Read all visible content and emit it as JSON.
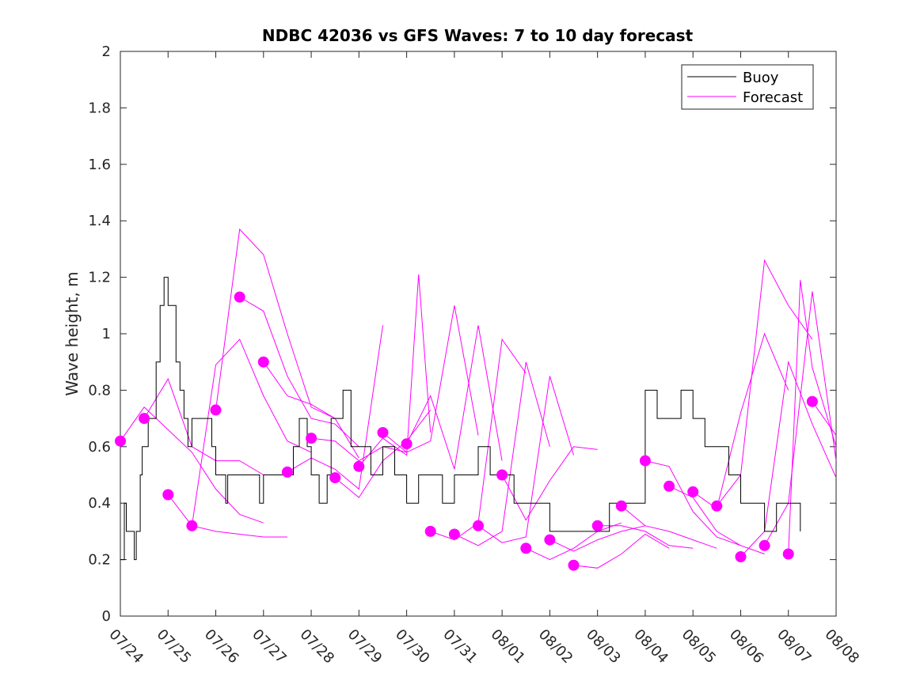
{
  "chart_data": {
    "type": "line",
    "title": "NDBC 42036 vs GFS Waves: 7 to 10 day forecast",
    "ylabel": "Wave height, m",
    "xlabel": "",
    "ylim": [
      0,
      2
    ],
    "yticks": [
      "0",
      "0.2",
      "0.4",
      "0.6",
      "0.8",
      "1",
      "1.2",
      "1.4",
      "1.6",
      "1.8",
      "2"
    ],
    "xlim": [
      "07/24",
      "08/08"
    ],
    "xticks": [
      "07/24",
      "07/25",
      "07/26",
      "07/27",
      "07/28",
      "07/29",
      "07/30",
      "07/31",
      "08/01",
      "08/02",
      "08/03",
      "08/04",
      "08/05",
      "08/06",
      "08/07",
      "08/08"
    ],
    "grid": false,
    "legend_position": "top-right",
    "legend": [
      "Buoy",
      "Forecast"
    ],
    "colors": {
      "buoy": "#000000",
      "forecast": "#ff00ff"
    },
    "buoy": {
      "name": "Buoy",
      "x": [
        "07/24 00:00",
        "07/24 02:00",
        "07/24 03:00",
        "07/24 05:00",
        "07/24 07:00",
        "07/24 08:00",
        "07/24 10:00",
        "07/24 11:00",
        "07/24 13:00",
        "07/24 14:00",
        "07/24 16:00",
        "07/24 18:00",
        "07/24 20:00",
        "07/24 22:00",
        "07/25 00:00",
        "07/25 02:00",
        "07/25 04:00",
        "07/25 06:00",
        "07/25 08:00",
        "07/25 10:00",
        "07/25 12:00",
        "07/25 13:00",
        "07/25 14:00",
        "07/25 15:00",
        "07/25 16:00",
        "07/25 17:00",
        "07/25 18:00",
        "07/25 20:00",
        "07/25 22:00",
        "07/26 00:00",
        "07/26 02:00",
        "07/26 04:00",
        "07/26 05:00",
        "07/26 06:00",
        "07/26 12:00",
        "07/26 14:00",
        "07/26 18:00",
        "07/26 22:00",
        "07/27 00:00",
        "07/27 06:00",
        "07/27 12:00",
        "07/27 15:00",
        "07/27 18:00",
        "07/27 22:00",
        "07/28 00:00",
        "07/28 04:00",
        "07/28 08:00",
        "07/28 10:00",
        "07/28 12:00",
        "07/28 16:00",
        "07/28 20:00",
        "07/29 00:00",
        "07/29 06:00",
        "07/29 12:00",
        "07/29 18:00",
        "07/30 00:00",
        "07/30 06:00",
        "07/30 12:00",
        "07/30 18:00",
        "07/31 00:00",
        "07/31 06:00",
        "07/31 12:00",
        "07/31 18:00",
        "08/01 00:00",
        "08/01 06:00",
        "08/01 12:00",
        "08/01 18:00",
        "08/02 00:00",
        "08/02 06:00",
        "08/02 12:00",
        "08/02 18:00",
        "08/03 00:00",
        "08/03 06:00",
        "08/03 12:00",
        "08/03 18:00",
        "08/04 00:00",
        "08/04 06:00",
        "08/04 12:00",
        "08/04 18:00",
        "08/05 00:00",
        "08/05 06:00",
        "08/05 12:00",
        "08/05 18:00",
        "08/06 00:00",
        "08/06 06:00",
        "08/06 12:00",
        "08/06 18:00",
        "08/07 00:00",
        "08/07 06:00"
      ],
      "values": [
        0.2,
        0.4,
        0.3,
        0.3,
        0.2,
        0.3,
        0.5,
        0.6,
        0.6,
        0.7,
        0.7,
        0.9,
        1.1,
        1.2,
        1.1,
        1.1,
        0.9,
        0.8,
        0.7,
        0.6,
        0.7,
        0.7,
        0.7,
        0.7,
        0.7,
        0.7,
        0.7,
        0.7,
        0.6,
        0.5,
        0.5,
        0.5,
        0.4,
        0.5,
        0.5,
        0.5,
        0.5,
        0.4,
        0.5,
        0.5,
        0.5,
        0.6,
        0.7,
        0.6,
        0.5,
        0.4,
        0.5,
        0.7,
        0.7,
        0.8,
        0.6,
        0.6,
        0.5,
        0.6,
        0.5,
        0.4,
        0.5,
        0.5,
        0.4,
        0.5,
        0.5,
        0.6,
        0.5,
        0.5,
        0.4,
        0.4,
        0.4,
        0.3,
        0.3,
        0.3,
        0.3,
        0.3,
        0.4,
        0.4,
        0.4,
        0.8,
        0.7,
        0.7,
        0.8,
        0.7,
        0.6,
        0.6,
        0.5,
        0.4,
        0.4,
        0.3,
        0.4,
        0.4,
        0.3
      ]
    },
    "forecast_markers": {
      "x": [
        "07/24 00:00",
        "07/24 12:00",
        "07/25 00:00",
        "07/25 12:00",
        "07/26 00:00",
        "07/26 12:00",
        "07/27 00:00",
        "07/27 12:00",
        "07/28 00:00",
        "07/28 12:00",
        "07/29 00:00",
        "07/29 12:00",
        "07/30 00:00",
        "07/30 12:00",
        "07/31 00:00",
        "07/31 12:00",
        "08/01 00:00",
        "08/01 12:00",
        "08/02 00:00",
        "08/02 12:00",
        "08/03 00:00",
        "08/03 12:00",
        "08/04 00:00",
        "08/04 12:00",
        "08/05 00:00",
        "08/05 12:00",
        "08/06 00:00",
        "08/06 12:00",
        "08/07 00:00",
        "08/07 12:00"
      ],
      "values": [
        0.62,
        0.7,
        0.43,
        0.32,
        0.73,
        1.13,
        0.9,
        0.51,
        0.63,
        0.49,
        0.53,
        0.65,
        0.61,
        0.3,
        0.29,
        0.32,
        0.5,
        0.24,
        0.27,
        0.18,
        0.32,
        0.39,
        0.55,
        0.46,
        0.44,
        0.39,
        0.21,
        0.25,
        0.22,
        0.76
      ]
    },
    "forecast_runs": [
      {
        "x": [
          "07/24 00:00",
          "07/24 12:00",
          "07/25 00:00",
          "07/25 12:00",
          "07/26 00:00",
          "07/26 12:00",
          "07/27 00:00"
        ],
        "values": [
          0.62,
          0.74,
          0.66,
          0.58,
          0.45,
          0.36,
          0.33
        ]
      },
      {
        "x": [
          "07/24 12:00",
          "07/25 00:00",
          "07/25 12:00",
          "07/26 00:00",
          "07/26 12:00",
          "07/27 00:00"
        ],
        "values": [
          0.7,
          0.84,
          0.6,
          0.55,
          0.55,
          0.5
        ]
      },
      {
        "x": [
          "07/25 00:00",
          "07/25 12:00",
          "07/26 00:00",
          "07/26 12:00",
          "07/27 00:00",
          "07/27 12:00"
        ],
        "values": [
          0.43,
          0.32,
          0.3,
          0.29,
          0.28,
          0.28
        ]
      },
      {
        "x": [
          "07/25 12:00",
          "07/26 00:00",
          "07/26 12:00",
          "07/27 00:00",
          "07/27 12:00",
          "07/28 00:00"
        ],
        "values": [
          0.32,
          0.89,
          0.98,
          0.78,
          0.62,
          0.58
        ]
      },
      {
        "x": [
          "07/26 00:00",
          "07/26 12:00",
          "07/27 00:00",
          "07/27 12:00",
          "07/28 00:00",
          "07/28 12:00"
        ],
        "values": [
          0.73,
          1.37,
          1.28,
          1.0,
          0.74,
          0.7
        ]
      },
      {
        "x": [
          "07/26 12:00",
          "07/27 00:00",
          "07/27 12:00",
          "07/28 00:00",
          "07/28 12:00",
          "07/29 00:00"
        ],
        "values": [
          1.13,
          1.08,
          0.85,
          0.7,
          0.68,
          0.6
        ]
      },
      {
        "x": [
          "07/27 00:00",
          "07/27 12:00",
          "07/28 00:00",
          "07/28 12:00",
          "07/29 00:00"
        ],
        "values": [
          0.9,
          0.78,
          0.75,
          0.7,
          0.56
        ]
      },
      {
        "x": [
          "07/27 12:00",
          "07/28 00:00",
          "07/28 12:00",
          "07/29 00:00",
          "07/29 12:00"
        ],
        "values": [
          0.51,
          0.56,
          0.52,
          0.45,
          1.03
        ]
      },
      {
        "x": [
          "07/28 00:00",
          "07/28 12:00",
          "07/29 00:00",
          "07/29 12:00",
          "07/30 00:00"
        ],
        "values": [
          0.63,
          0.62,
          0.55,
          0.6,
          0.58
        ]
      },
      {
        "x": [
          "07/28 12:00",
          "07/29 00:00",
          "07/29 12:00",
          "07/30 00:00",
          "07/30 12:00"
        ],
        "values": [
          0.49,
          0.42,
          0.55,
          0.62,
          0.73
        ]
      },
      {
        "x": [
          "07/29 00:00",
          "07/29 12:00",
          "07/30 00:00",
          "07/30 06:00",
          "07/30 12:00"
        ],
        "values": [
          0.53,
          0.63,
          0.57,
          1.21,
          0.65
        ]
      },
      {
        "x": [
          "07/29 12:00",
          "07/30 00:00",
          "07/30 12:00",
          "07/31 00:00",
          "07/31 12:00"
        ],
        "values": [
          0.65,
          0.58,
          0.62,
          1.1,
          0.64
        ]
      },
      {
        "x": [
          "07/30 00:00",
          "07/30 12:00",
          "07/31 00:00",
          "07/31 12:00",
          "08/01 00:00"
        ],
        "values": [
          0.61,
          0.78,
          0.52,
          1.03,
          0.55
        ]
      },
      {
        "x": [
          "07/30 12:00",
          "07/31 00:00",
          "07/31 12:00",
          "08/01 00:00",
          "08/01 12:00"
        ],
        "values": [
          0.3,
          0.27,
          0.33,
          0.98,
          0.86
        ]
      },
      {
        "x": [
          "07/31 00:00",
          "07/31 12:00",
          "08/01 00:00",
          "08/01 12:00",
          "08/02 00:00"
        ],
        "values": [
          0.29,
          0.25,
          0.3,
          0.9,
          0.6
        ]
      },
      {
        "x": [
          "07/31 12:00",
          "08/01 00:00",
          "08/01 12:00",
          "08/02 00:00",
          "08/02 12:00"
        ],
        "values": [
          0.32,
          0.26,
          0.28,
          0.85,
          0.57
        ]
      },
      {
        "x": [
          "08/01 00:00",
          "08/01 12:00",
          "08/02 00:00",
          "08/02 12:00",
          "08/03 00:00"
        ],
        "values": [
          0.5,
          0.34,
          0.48,
          0.6,
          0.59
        ]
      },
      {
        "x": [
          "08/01 12:00",
          "08/02 00:00",
          "08/02 12:00",
          "08/03 00:00",
          "08/03 12:00"
        ],
        "values": [
          0.24,
          0.2,
          0.24,
          0.3,
          0.33
        ]
      },
      {
        "x": [
          "08/02 00:00",
          "08/02 12:00",
          "08/03 00:00",
          "08/03 12:00",
          "08/04 00:00"
        ],
        "values": [
          0.27,
          0.23,
          0.27,
          0.3,
          0.32
        ]
      },
      {
        "x": [
          "08/02 12:00",
          "08/03 00:00",
          "08/03 12:00",
          "08/04 00:00",
          "08/04 12:00"
        ],
        "values": [
          0.18,
          0.17,
          0.22,
          0.29,
          0.24
        ]
      },
      {
        "x": [
          "08/03 00:00",
          "08/03 12:00",
          "08/04 00:00",
          "08/04 12:00",
          "08/05 00:00"
        ],
        "values": [
          0.32,
          0.32,
          0.3,
          0.25,
          0.24
        ]
      },
      {
        "x": [
          "08/03 12:00",
          "08/04 00:00",
          "08/04 12:00",
          "08/05 00:00",
          "08/05 12:00"
        ],
        "values": [
          0.39,
          0.32,
          0.3,
          0.27,
          0.24
        ]
      },
      {
        "x": [
          "08/04 00:00",
          "08/04 12:00",
          "08/05 00:00",
          "08/05 12:00",
          "08/06 00:00"
        ],
        "values": [
          0.55,
          0.53,
          0.37,
          0.28,
          0.25
        ]
      },
      {
        "x": [
          "08/04 12:00",
          "08/05 00:00",
          "08/05 12:00",
          "08/06 00:00",
          "08/06 12:00"
        ],
        "values": [
          0.46,
          0.42,
          0.3,
          0.25,
          0.22
        ]
      },
      {
        "x": [
          "08/05 00:00",
          "08/05 12:00",
          "08/06 00:00",
          "08/06 12:00",
          "08/07 00:00"
        ],
        "values": [
          0.44,
          0.38,
          0.72,
          1.0,
          0.8
        ]
      },
      {
        "x": [
          "08/05 12:00",
          "08/06 00:00",
          "08/06 12:00",
          "08/07 00:00",
          "08/07 12:00"
        ],
        "values": [
          0.39,
          0.5,
          1.26,
          1.1,
          0.98
        ]
      },
      {
        "x": [
          "08/06 00:00",
          "08/06 12:00",
          "08/07 00:00",
          "08/07 12:00",
          "08/08 00:00"
        ],
        "values": [
          0.21,
          0.3,
          0.9,
          0.68,
          0.49
        ]
      },
      {
        "x": [
          "08/06 12:00",
          "08/07 00:00",
          "08/07 12:00",
          "08/08 00:00"
        ],
        "values": [
          0.25,
          0.4,
          1.15,
          0.55
        ]
      },
      {
        "x": [
          "08/07 00:00",
          "08/07 06:00",
          "08/07 12:00",
          "08/08 00:00"
        ],
        "values": [
          0.22,
          1.19,
          0.88,
          0.6
        ]
      },
      {
        "x": [
          "08/07 12:00",
          "08/08 00:00"
        ],
        "values": [
          0.76,
          0.64
        ]
      }
    ]
  }
}
